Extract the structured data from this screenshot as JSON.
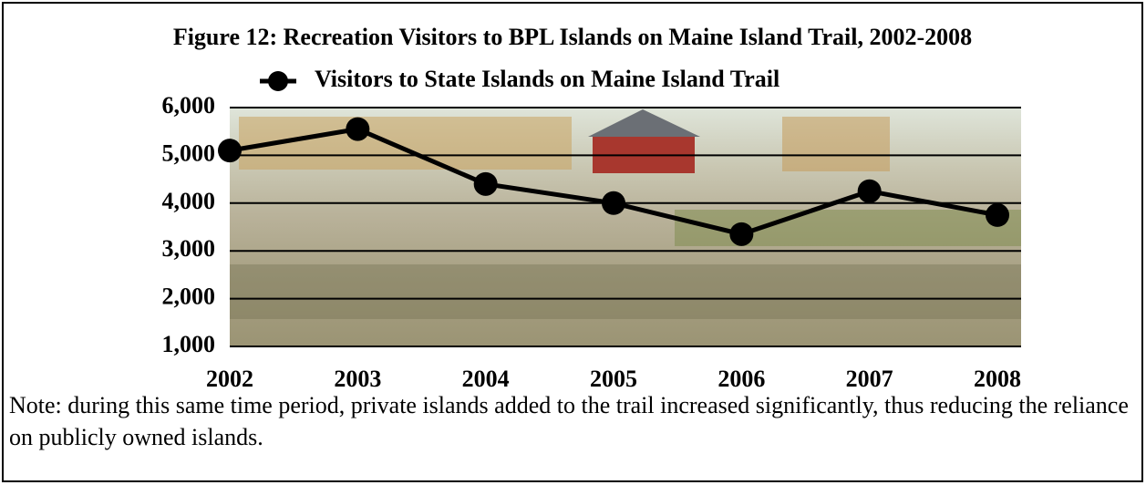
{
  "chart_data": {
    "type": "line",
    "title": "Figure 12: Recreation Visitors to BPL Islands on Maine Island Trail, 2002-2008",
    "categories": [
      "2002",
      "2003",
      "2004",
      "2005",
      "2006",
      "2007",
      "2008"
    ],
    "series": [
      {
        "name": "Visitors to State Islands on Maine Island Trail",
        "color": "#000000",
        "values": [
          5100,
          5550,
          4400,
          4000,
          3350,
          4250,
          3750
        ]
      }
    ],
    "ylim": [
      1000,
      6000
    ],
    "yticks": [
      {
        "value": 1000,
        "label": "1,000"
      },
      {
        "value": 2000,
        "label": "2,000"
      },
      {
        "value": 3000,
        "label": "3,000"
      },
      {
        "value": 4000,
        "label": "4,000"
      },
      {
        "value": 5000,
        "label": "5,000"
      },
      {
        "value": 6000,
        "label": "6,000"
      }
    ],
    "grid": true,
    "legend": "top",
    "note": "Note: during this same time period, private islands added to the trail increased significantly, thus reducing the reliance on publicly owned islands."
  }
}
